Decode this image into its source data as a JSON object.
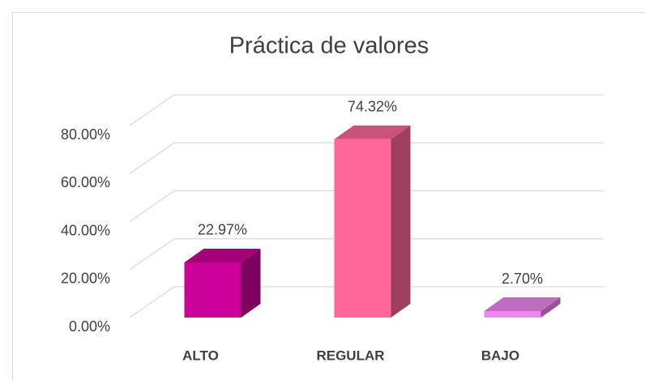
{
  "chart_data": {
    "type": "bar3d",
    "title": "Práctica de valores",
    "categories": [
      "ALTO",
      "REGULAR",
      "BAJO"
    ],
    "values": [
      22.97,
      74.32,
      2.7
    ],
    "value_labels": [
      "22.97%",
      "74.32%",
      "2.70%"
    ],
    "colors": [
      "#cc0099",
      "#ff6699",
      "#ee88ee"
    ],
    "ylim": [
      0,
      80
    ],
    "yticks": [
      {
        "value": 0,
        "label": "0.00%"
      },
      {
        "value": 20,
        "label": "20.00%"
      },
      {
        "value": 40,
        "label": "40.00%"
      },
      {
        "value": 60,
        "label": "60.00%"
      },
      {
        "value": 80,
        "label": "80.00%"
      }
    ],
    "grid": true
  }
}
